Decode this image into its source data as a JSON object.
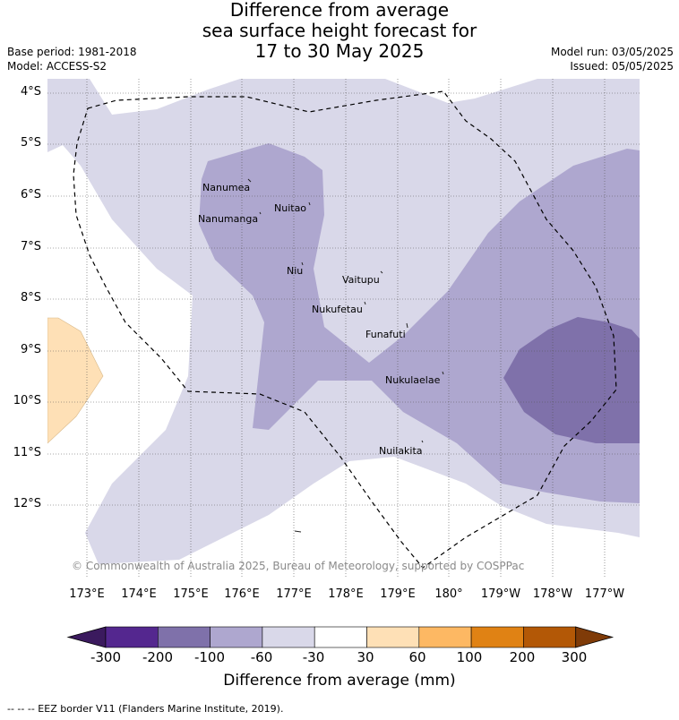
{
  "title": {
    "line1": "Difference from average",
    "line2": "sea surface height forecast for",
    "line3": "17 to 30 May 2025"
  },
  "meta": {
    "base_period": "Base period: 1981-2018",
    "model": "Model: ACCESS-S2",
    "model_run": "Model run: 03/05/2025",
    "issued": "Issued: 05/05/2025"
  },
  "axes": {
    "x_ticks": [
      "173°E",
      "174°E",
      "175°E",
      "176°E",
      "177°E",
      "178°E",
      "179°E",
      "180°",
      "179°W",
      "178°W",
      "177°W"
    ],
    "y_ticks": [
      "4°S",
      "5°S",
      "6°S",
      "7°S",
      "8°S",
      "9°S",
      "10°S",
      "11°S",
      "12°S"
    ]
  },
  "islands": [
    {
      "name": "Nanumea"
    },
    {
      "name": "Nuitao"
    },
    {
      "name": "Nanumanga"
    },
    {
      "name": "Niu"
    },
    {
      "name": "Vaitupu"
    },
    {
      "name": "Nukufetau"
    },
    {
      "name": "Funafuti"
    },
    {
      "name": "Nukulaelae"
    },
    {
      "name": "Nuilakita"
    }
  ],
  "copyright": "© Commonwealth of Australia 2025, Bureau of Meteorology, supported by COSPPac",
  "colorbar": {
    "labels": [
      "-300",
      "-200",
      "-100",
      "-60",
      "-30",
      "30",
      "60",
      "100",
      "200",
      "300"
    ],
    "colors": [
      "#3b1a5e",
      "#54278f",
      "#7f71aa",
      "#aea7cf",
      "#d9d8e9",
      "#ffffff",
      "#fee0b6",
      "#fdb863",
      "#e08214",
      "#b35806",
      "#7f3b08"
    ],
    "title": "Difference from average (mm)"
  },
  "footer": "--  --  -- EEZ border V11 (Flanders Marine Institute, 2019)."
}
